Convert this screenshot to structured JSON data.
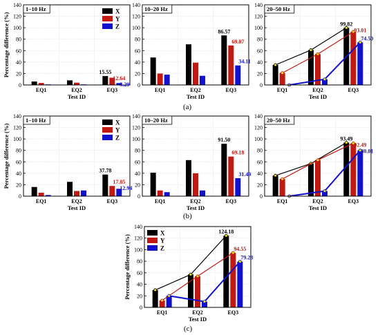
{
  "panel_labels": [
    "(a)",
    "(b)",
    "(c)"
  ],
  "colors": {
    "X": "#000000",
    "Y": "#c01a12",
    "Z": "#1212cc"
  },
  "chart_data": [
    {
      "type": "bar",
      "title": "1–10 Hz",
      "xlabel": "Test ID",
      "ylabel": "Percentage difference (%)",
      "ylim": [
        0,
        140
      ],
      "yticks": [
        0,
        20,
        40,
        60,
        80,
        100,
        120,
        140
      ],
      "grid": true,
      "categories": [
        "EQ1",
        "EQ2",
        "EQ3"
      ],
      "legend": "top-right",
      "lines": false,
      "series": [
        {
          "name": "X",
          "values": [
            6,
            8,
            15.55
          ]
        },
        {
          "name": "Y",
          "values": [
            3.5,
            4,
            12.64
          ]
        },
        {
          "name": "Z",
          "values": [
            1,
            1,
            3.29
          ]
        }
      ],
      "data_labels": [
        {
          "series": "X",
          "category": "EQ3",
          "text": "15.55"
        },
        {
          "series": "Y",
          "category": "EQ3",
          "text": "12.64"
        },
        {
          "series": "Z",
          "category": "EQ3",
          "text": "3.29"
        }
      ]
    },
    {
      "type": "bar",
      "title": "10–20 Hz",
      "xlabel": "Test ID",
      "ylabel": "",
      "ylim": [
        0,
        140
      ],
      "yticks": [
        0,
        20,
        40,
        60,
        80,
        100,
        120,
        140
      ],
      "grid": true,
      "categories": [
        "EQ1",
        "EQ2",
        "EQ3"
      ],
      "legend": "",
      "lines": false,
      "series": [
        {
          "name": "X",
          "values": [
            48,
            71,
            86.57
          ]
        },
        {
          "name": "Y",
          "values": [
            20,
            39,
            69.07
          ]
        },
        {
          "name": "Z",
          "values": [
            18,
            16,
            34.11
          ]
        }
      ],
      "data_labels": [
        {
          "series": "X",
          "category": "EQ3",
          "text": "86.57"
        },
        {
          "series": "Y",
          "category": "EQ3",
          "text": "69.07"
        },
        {
          "series": "Z",
          "category": "EQ3",
          "text": "34.11"
        }
      ]
    },
    {
      "type": "bar",
      "title": "20–50 Hz",
      "xlabel": "Test ID",
      "ylabel": "",
      "ylim": [
        0,
        140
      ],
      "yticks": [
        0,
        20,
        40,
        60,
        80,
        100,
        120,
        140
      ],
      "grid": true,
      "categories": [
        "EQ1",
        "EQ2",
        "EQ3"
      ],
      "legend": "",
      "lines": true,
      "series": [
        {
          "name": "X",
          "values": [
            35,
            61,
            99.82
          ]
        },
        {
          "name": "Y",
          "values": [
            21,
            54,
            93.01
          ]
        },
        {
          "name": "Z",
          "values": [
            0,
            10,
            74.5
          ]
        }
      ],
      "data_labels": [
        {
          "series": "X",
          "category": "EQ3",
          "text": "99.82"
        },
        {
          "series": "Y",
          "category": "EQ3",
          "text": "93.01"
        },
        {
          "series": "Z",
          "category": "EQ3",
          "text": "74.50"
        }
      ]
    },
    {
      "type": "bar",
      "title": "1–10 Hz",
      "xlabel": "Test ID",
      "ylabel": "Percentage difference (%)",
      "ylim": [
        0,
        140
      ],
      "yticks": [
        0,
        20,
        40,
        60,
        80,
        100,
        120,
        140
      ],
      "grid": true,
      "categories": [
        "EQ1",
        "EQ2",
        "EQ3"
      ],
      "legend": "top-right",
      "lines": false,
      "series": [
        {
          "name": "X",
          "values": [
            16,
            25,
            37.78
          ]
        },
        {
          "name": "Y",
          "values": [
            6,
            9,
            17.85
          ]
        },
        {
          "name": "Z",
          "values": [
            2,
            10,
            12.94
          ]
        }
      ],
      "data_labels": [
        {
          "series": "X",
          "category": "EQ3",
          "text": "37.78"
        },
        {
          "series": "Y",
          "category": "EQ3",
          "text": "17.85"
        },
        {
          "series": "Z",
          "category": "EQ3",
          "text": "12.94"
        }
      ]
    },
    {
      "type": "bar",
      "title": "10–20 Hz",
      "xlabel": "Test ID",
      "ylabel": "",
      "ylim": [
        0,
        140
      ],
      "yticks": [
        0,
        20,
        40,
        60,
        80,
        100,
        120,
        140
      ],
      "grid": true,
      "categories": [
        "EQ1",
        "EQ2",
        "EQ3"
      ],
      "legend": "",
      "lines": false,
      "series": [
        {
          "name": "X",
          "values": [
            41,
            63,
            91.5
          ]
        },
        {
          "name": "Y",
          "values": [
            10,
            40,
            69.18
          ]
        },
        {
          "name": "Z",
          "values": [
            7,
            10,
            31.49
          ]
        }
      ],
      "data_labels": [
        {
          "series": "X",
          "category": "EQ3",
          "text": "91.50"
        },
        {
          "series": "Y",
          "category": "EQ3",
          "text": "69.18"
        },
        {
          "series": "Z",
          "category": "EQ3",
          "text": "31.49"
        }
      ]
    },
    {
      "type": "bar",
      "title": "20–50 Hz",
      "xlabel": "Test ID",
      "ylabel": "",
      "ylim": [
        0,
        140
      ],
      "yticks": [
        0,
        20,
        40,
        60,
        80,
        100,
        120,
        140
      ],
      "grid": true,
      "categories": [
        "EQ1",
        "EQ2",
        "EQ3"
      ],
      "legend": "",
      "lines": true,
      "series": [
        {
          "name": "X",
          "values": [
            36,
            57,
            93.49
          ]
        },
        {
          "name": "Y",
          "values": [
            30,
            63,
            92.49
          ]
        },
        {
          "name": "Z",
          "values": [
            0,
            9,
            80.01
          ]
        }
      ],
      "data_labels": [
        {
          "series": "X",
          "category": "EQ3",
          "text": "93.49"
        },
        {
          "series": "Y",
          "category": "EQ3",
          "text": "92.49"
        },
        {
          "series": "Z",
          "category": "EQ3",
          "text": "80.01"
        }
      ]
    },
    {
      "type": "bar",
      "title": "",
      "xlabel": "Test ID",
      "ylabel": "Percentage difference (%)",
      "ylim": [
        0,
        140
      ],
      "yticks": [
        0,
        20,
        40,
        60,
        80,
        100,
        120,
        140
      ],
      "grid": true,
      "categories": [
        "EQ1",
        "EQ2",
        "EQ3"
      ],
      "legend": "top-left",
      "lines": true,
      "series": [
        {
          "name": "X",
          "values": [
            30,
            57,
            124.18
          ]
        },
        {
          "name": "Y",
          "values": [
            12,
            54,
            94.55
          ]
        },
        {
          "name": "Z",
          "values": [
            20,
            10,
            79.28
          ]
        }
      ],
      "data_labels": [
        {
          "series": "X",
          "category": "EQ3",
          "text": "124.18"
        },
        {
          "series": "Y",
          "category": "EQ3",
          "text": "94.55"
        },
        {
          "series": "Z",
          "category": "EQ3",
          "text": "79.28"
        }
      ]
    }
  ]
}
